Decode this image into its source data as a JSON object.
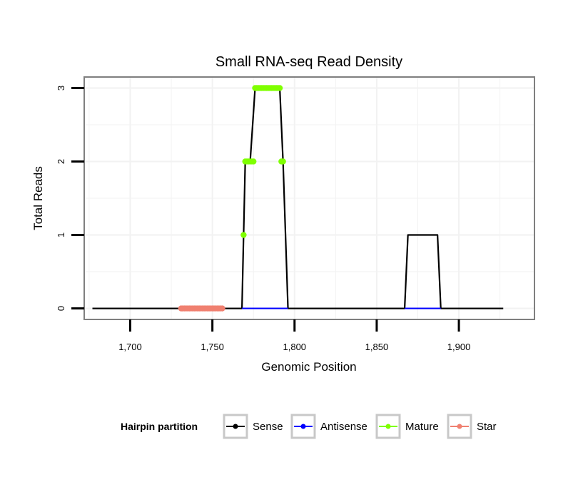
{
  "chart_data": {
    "type": "line",
    "title": "Small RNA-seq Read Density",
    "xlabel": "Genomic Position",
    "ylabel": "Total Reads",
    "xlim": [
      1672,
      1946
    ],
    "ylim": [
      -0.15,
      3.15
    ],
    "xticks": [
      1700,
      1750,
      1800,
      1850,
      1900
    ],
    "xtick_labels": [
      "1,700",
      "1,750",
      "1,800",
      "1,850",
      "1,900"
    ],
    "yticks": [
      0,
      1,
      2,
      3
    ],
    "ytick_labels": [
      "0",
      "1",
      "2",
      "3"
    ],
    "grid": true,
    "legend": {
      "title": "Hairpin partition",
      "position": "bottom",
      "entries": [
        {
          "label": "Sense",
          "color": "#000000"
        },
        {
          "label": "Antisense",
          "color": "#0000ff"
        },
        {
          "label": "Mature",
          "color": "#7fff00"
        },
        {
          "label": "Star",
          "color": "#f08070"
        }
      ]
    },
    "series": [
      {
        "name": "Sense",
        "color": "#000000",
        "x": [
          1677,
          1768,
          1770,
          1773,
          1776,
          1791,
          1793,
          1796,
          1867,
          1869,
          1887,
          1889,
          1927
        ],
        "y": [
          0,
          0,
          2,
          2,
          3,
          3,
          2,
          0,
          0,
          1,
          1,
          0,
          0
        ]
      },
      {
        "name": "Antisense",
        "color": "#0000ff",
        "x": [
          1768,
          1796,
          1867,
          1889
        ],
        "y": [
          0,
          0,
          0,
          0
        ],
        "segments": [
          [
            0,
            1
          ],
          [
            2,
            3
          ]
        ]
      },
      {
        "name": "Mature",
        "color": "#7fff00",
        "points": [
          {
            "x": 1769,
            "y": 1
          },
          {
            "x": 1770,
            "y": 2
          },
          {
            "x": 1771,
            "y": 2
          },
          {
            "x": 1772,
            "y": 2
          },
          {
            "x": 1773,
            "y": 2
          },
          {
            "x": 1774,
            "y": 2
          },
          {
            "x": 1775,
            "y": 2
          },
          {
            "x": 1776,
            "y": 3
          },
          {
            "x": 1777,
            "y": 3
          },
          {
            "x": 1778,
            "y": 3
          },
          {
            "x": 1779,
            "y": 3
          },
          {
            "x": 1780,
            "y": 3
          },
          {
            "x": 1781,
            "y": 3
          },
          {
            "x": 1782,
            "y": 3
          },
          {
            "x": 1783,
            "y": 3
          },
          {
            "x": 1784,
            "y": 3
          },
          {
            "x": 1785,
            "y": 3
          },
          {
            "x": 1786,
            "y": 3
          },
          {
            "x": 1787,
            "y": 3
          },
          {
            "x": 1788,
            "y": 3
          },
          {
            "x": 1789,
            "y": 3
          },
          {
            "x": 1790,
            "y": 3
          },
          {
            "x": 1791,
            "y": 3
          },
          {
            "x": 1792,
            "y": 2
          },
          {
            "x": 1793,
            "y": 2
          }
        ]
      },
      {
        "name": "Star",
        "color": "#f08070",
        "points": [
          {
            "x": 1731,
            "y": 0
          },
          {
            "x": 1732,
            "y": 0
          },
          {
            "x": 1733,
            "y": 0
          },
          {
            "x": 1734,
            "y": 0
          },
          {
            "x": 1735,
            "y": 0
          },
          {
            "x": 1736,
            "y": 0
          },
          {
            "x": 1737,
            "y": 0
          },
          {
            "x": 1738,
            "y": 0
          },
          {
            "x": 1739,
            "y": 0
          },
          {
            "x": 1740,
            "y": 0
          },
          {
            "x": 1741,
            "y": 0
          },
          {
            "x": 1742,
            "y": 0
          },
          {
            "x": 1743,
            "y": 0
          },
          {
            "x": 1744,
            "y": 0
          },
          {
            "x": 1745,
            "y": 0
          },
          {
            "x": 1746,
            "y": 0
          },
          {
            "x": 1747,
            "y": 0
          },
          {
            "x": 1748,
            "y": 0
          },
          {
            "x": 1749,
            "y": 0
          },
          {
            "x": 1750,
            "y": 0
          },
          {
            "x": 1751,
            "y": 0
          },
          {
            "x": 1752,
            "y": 0
          },
          {
            "x": 1753,
            "y": 0
          },
          {
            "x": 1754,
            "y": 0
          },
          {
            "x": 1755,
            "y": 0
          },
          {
            "x": 1756,
            "y": 0
          }
        ]
      }
    ]
  }
}
